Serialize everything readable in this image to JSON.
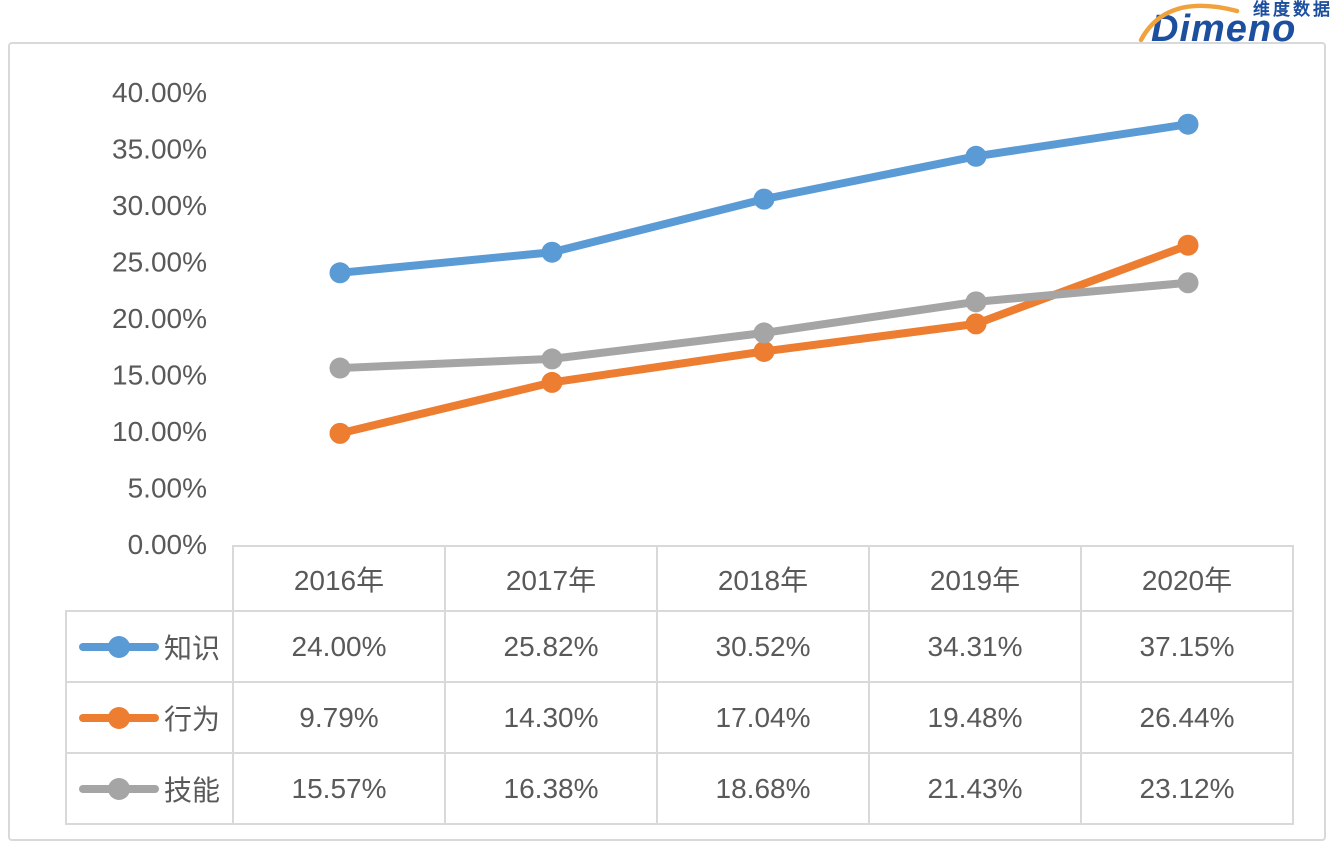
{
  "logo": {
    "cn": "维度数据",
    "en": "Dimeno",
    "blue": "#1d4f9f",
    "orange": "#f0a23c"
  },
  "colors": {
    "border": "#d9d9d9",
    "text": "#595959",
    "background": "#ffffff"
  },
  "chart_data": {
    "type": "line",
    "title": "",
    "xlabel": "",
    "ylabel": "",
    "categories": [
      "2016年",
      "2017年",
      "2018年",
      "2019年",
      "2020年"
    ],
    "series": [
      {
        "name": "知识",
        "color": "#5b9bd5",
        "values": [
          24.0,
          25.82,
          30.52,
          34.31,
          37.15
        ],
        "labels": [
          "24.00%",
          "25.82%",
          "30.52%",
          "34.31%",
          "37.15%"
        ]
      },
      {
        "name": "行为",
        "color": "#ed7d31",
        "values": [
          9.79,
          14.3,
          17.04,
          19.48,
          26.44
        ],
        "labels": [
          "9.79%",
          "14.30%",
          "17.04%",
          "19.48%",
          "26.44%"
        ]
      },
      {
        "name": "技能",
        "color": "#a5a5a5",
        "values": [
          15.57,
          16.38,
          18.68,
          21.43,
          23.12
        ],
        "labels": [
          "15.57%",
          "16.38%",
          "18.68%",
          "21.43%",
          "23.12%"
        ]
      }
    ],
    "ylim": [
      0,
      40
    ],
    "grid": false,
    "legend_position": "table-left",
    "y_ticks": [
      {
        "value": 40,
        "label": "40.00%"
      },
      {
        "value": 35,
        "label": "35.00%"
      },
      {
        "value": 30,
        "label": "30.00%"
      },
      {
        "value": 25,
        "label": "25.00%"
      },
      {
        "value": 20,
        "label": "20.00%"
      },
      {
        "value": 15,
        "label": "15.00%"
      },
      {
        "value": 10,
        "label": "10.00%"
      },
      {
        "value": 5,
        "label": "5.00%"
      },
      {
        "value": 0,
        "label": "0.00%"
      }
    ]
  }
}
